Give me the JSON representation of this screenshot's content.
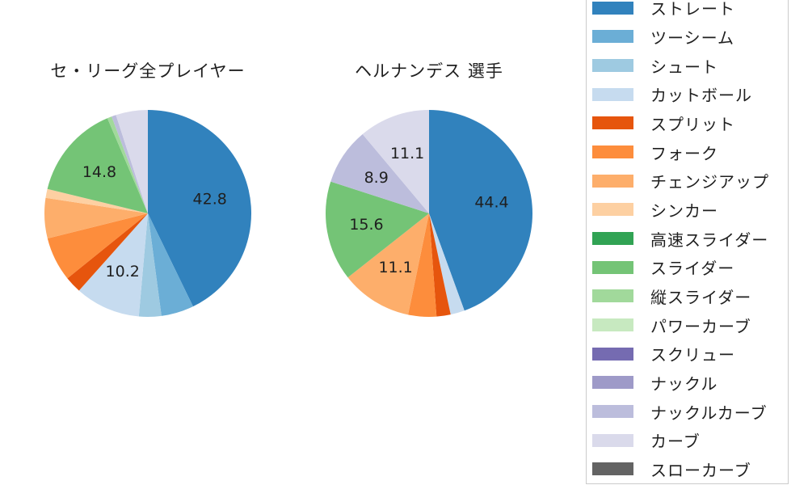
{
  "page": {
    "background": "#ffffff",
    "text_color": "#1f1f1f"
  },
  "chart_data": [
    {
      "type": "pie",
      "title": "セ・リーグ全プレイヤー",
      "start_angle": 0,
      "direction": "clockwise-from-12-oclock",
      "slices": [
        {
          "label": "ストレート",
          "value": 42.8,
          "display": "42.8",
          "color": "#3182bd"
        },
        {
          "label": "ツーシーム",
          "value": 5.1,
          "display": "",
          "color": "#6baed6"
        },
        {
          "label": "シュート",
          "value": 3.5,
          "display": "",
          "color": "#9ecae1"
        },
        {
          "label": "カットボール",
          "value": 10.2,
          "display": "10.2",
          "color": "#c6dbef"
        },
        {
          "label": "スプリット",
          "value": 2.6,
          "display": "",
          "color": "#e6550d"
        },
        {
          "label": "フォーク",
          "value": 6.9,
          "display": "",
          "color": "#fd8d3c"
        },
        {
          "label": "チェンジアップ",
          "value": 6.3,
          "display": "",
          "color": "#fdae6b"
        },
        {
          "label": "シンカー",
          "value": 1.4,
          "display": "",
          "color": "#fdd0a2"
        },
        {
          "label": "スライダー",
          "value": 14.8,
          "display": "14.8",
          "color": "#74c476"
        },
        {
          "label": "縦スライダー",
          "value": 0.7,
          "display": "",
          "color": "#a1d99b"
        },
        {
          "label": "ナックルカーブ",
          "value": 0.7,
          "display": "",
          "color": "#bcbddc"
        },
        {
          "label": "カーブ",
          "value": 5.0,
          "display": "",
          "color": "#dadaeb"
        }
      ]
    },
    {
      "type": "pie",
      "title": "ヘルナンデス 選手",
      "start_angle": 0,
      "direction": "clockwise-from-12-oclock",
      "slices": [
        {
          "label": "ストレート",
          "value": 44.4,
          "display": "44.4",
          "color": "#3182bd"
        },
        {
          "label": "カットボール",
          "value": 2.2,
          "display": "",
          "color": "#c6dbef"
        },
        {
          "label": "スプリット",
          "value": 2.2,
          "display": "",
          "color": "#e6550d"
        },
        {
          "label": "フォーク",
          "value": 4.4,
          "display": "",
          "color": "#fd8d3c"
        },
        {
          "label": "チェンジアップ",
          "value": 11.1,
          "display": "11.1",
          "color": "#fdae6b"
        },
        {
          "label": "スライダー",
          "value": 15.6,
          "display": "15.6",
          "color": "#74c476"
        },
        {
          "label": "ナックルカーブ",
          "value": 8.9,
          "display": "8.9",
          "color": "#bcbddc"
        },
        {
          "label": "カーブ",
          "value": 11.1,
          "display": "11.1",
          "color": "#dadaeb"
        }
      ]
    }
  ],
  "legend": {
    "position": "right",
    "border_color": "#cccccc",
    "items": [
      {
        "label": "ストレート",
        "color": "#3182bd"
      },
      {
        "label": "ツーシーム",
        "color": "#6baed6"
      },
      {
        "label": "シュート",
        "color": "#9ecae1"
      },
      {
        "label": "カットボール",
        "color": "#c6dbef"
      },
      {
        "label": "スプリット",
        "color": "#e6550d"
      },
      {
        "label": "フォーク",
        "color": "#fd8d3c"
      },
      {
        "label": "チェンジアップ",
        "color": "#fdae6b"
      },
      {
        "label": "シンカー",
        "color": "#fdd0a2"
      },
      {
        "label": "高速スライダー",
        "color": "#31a354"
      },
      {
        "label": "スライダー",
        "color": "#74c476"
      },
      {
        "label": "縦スライダー",
        "color": "#a1d99b"
      },
      {
        "label": "パワーカーブ",
        "color": "#c7e9c0"
      },
      {
        "label": "スクリュー",
        "color": "#756bb1"
      },
      {
        "label": "ナックル",
        "color": "#9e9ac8"
      },
      {
        "label": "ナックルカーブ",
        "color": "#bcbddc"
      },
      {
        "label": "カーブ",
        "color": "#dadaeb"
      },
      {
        "label": "スローカーブ",
        "color": "#636363"
      }
    ]
  }
}
